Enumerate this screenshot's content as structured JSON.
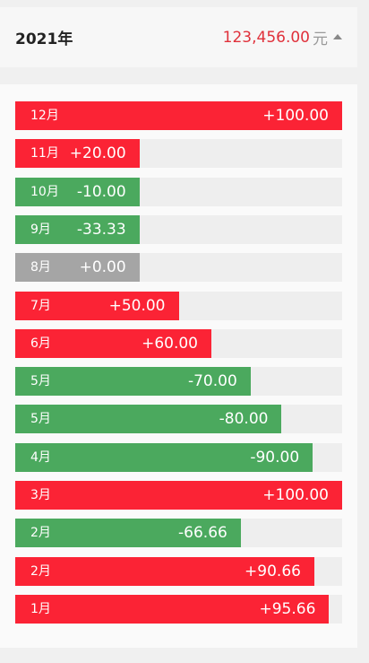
{
  "header": {
    "year": "2021年",
    "total_amount": "123,456.00",
    "total_unit": "元"
  },
  "colors": {
    "up": "#fb2335",
    "down": "#4ba95e",
    "flat": "#a5a5a5"
  },
  "rows": [
    {
      "month": "12月",
      "value": "+100.00",
      "status": "up",
      "fill": 1.0
    },
    {
      "month": "11月",
      "value": "+20.00",
      "status": "up",
      "fill": 0.38
    },
    {
      "month": "10月",
      "value": "-10.00",
      "status": "down",
      "fill": 0.38
    },
    {
      "month": "9月",
      "value": "-33.33",
      "status": "down",
      "fill": 0.38
    },
    {
      "month": "8月",
      "value": "+0.00",
      "status": "flat",
      "fill": 0.38
    },
    {
      "month": "7月",
      "value": "+50.00",
      "status": "up",
      "fill": 0.5
    },
    {
      "month": "6月",
      "value": "+60.00",
      "status": "up",
      "fill": 0.6
    },
    {
      "month": "5月",
      "value": "-70.00",
      "status": "down",
      "fill": 0.72
    },
    {
      "month": "5月",
      "value": "-80.00",
      "status": "down",
      "fill": 0.815
    },
    {
      "month": "4月",
      "value": "-90.00",
      "status": "down",
      "fill": 0.91
    },
    {
      "month": "3月",
      "value": "+100.00",
      "status": "up",
      "fill": 1.0
    },
    {
      "month": "2月",
      "value": "-66.66",
      "status": "down",
      "fill": 0.69
    },
    {
      "month": "2月",
      "value": "+90.66",
      "status": "up",
      "fill": 0.915
    },
    {
      "month": "1月",
      "value": "+95.66",
      "status": "up",
      "fill": 0.96
    }
  ]
}
